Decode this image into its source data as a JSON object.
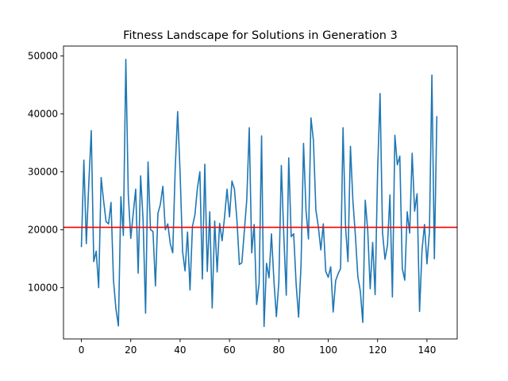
{
  "chart_data": {
    "type": "line",
    "title": "Fitness Landscape for Solutions in Generation 3",
    "xlabel": "",
    "ylabel": "",
    "xlim": [
      -7.25,
      152.25
    ],
    "ylim": [
      1150,
      51700
    ],
    "xticks": [
      0,
      20,
      40,
      60,
      80,
      100,
      120,
      140
    ],
    "yticks": [
      10000,
      20000,
      30000,
      40000,
      50000
    ],
    "grid": false,
    "series": [
      {
        "color": "#1f77b4",
        "values": [
          17000,
          32000,
          17600,
          28000,
          37100,
          14500,
          16300,
          10000,
          29000,
          25000,
          21400,
          21000,
          24700,
          11300,
          6300,
          3400,
          25700,
          19000,
          49400,
          26000,
          18500,
          22800,
          27000,
          12500,
          29300,
          21600,
          5600,
          31700,
          20000,
          19700,
          10300,
          22800,
          24400,
          27500,
          20000,
          21000,
          17600,
          16000,
          30400,
          40400,
          29700,
          16200,
          12900,
          19600,
          9600,
          20600,
          22600,
          27200,
          30000,
          11500,
          31300,
          12800,
          23100,
          6500,
          21500,
          12700,
          21100,
          18100,
          22200,
          27000,
          22200,
          28400,
          27000,
          21800,
          14000,
          14300,
          19700,
          25200,
          37600,
          16000,
          20900,
          7100,
          10800,
          36200,
          3300,
          14200,
          11700,
          19300,
          11200,
          5000,
          11000,
          31100,
          19000,
          8700,
          32400,
          18800,
          19300,
          10600,
          4900,
          14100,
          34900,
          23300,
          18400,
          39300,
          35400,
          23400,
          20500,
          16500,
          21000,
          12800,
          11800,
          13600,
          5800,
          11200,
          12400,
          13300,
          37600,
          20600,
          14500,
          34400,
          25000,
          19000,
          11900,
          9400,
          4000,
          25100,
          19900,
          9800,
          17800,
          8800,
          30000,
          43500,
          19500,
          14900,
          17300,
          26000,
          8400,
          36300,
          31200,
          32700,
          13300,
          11300,
          23100,
          19400,
          33200,
          23200,
          26200,
          5900,
          16500,
          20900,
          14100,
          19600,
          46700,
          15000,
          39600
        ]
      }
    ],
    "reference_line": {
      "orientation": "horizontal",
      "y": 20400,
      "color": "#ff0000"
    }
  }
}
